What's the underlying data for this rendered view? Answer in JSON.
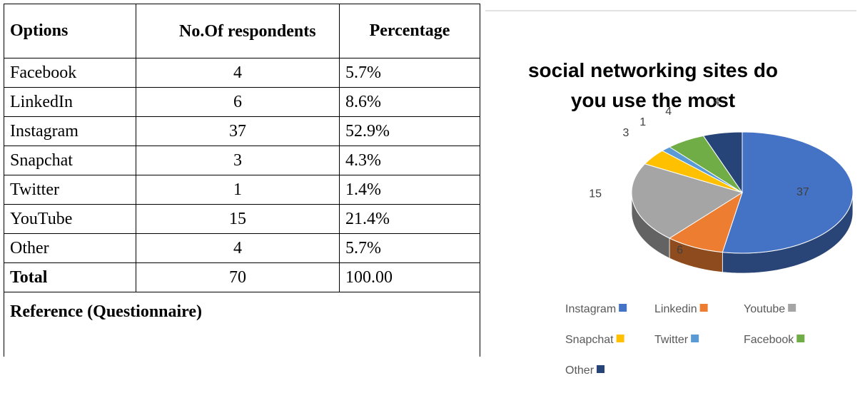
{
  "table": {
    "header": [
      "Options",
      "No.Of respondents",
      "Percentage"
    ],
    "rows": [
      [
        "Facebook",
        "4",
        "5.7%"
      ],
      [
        "LinkedIn",
        "6",
        "8.6%"
      ],
      [
        "Instagram",
        "37",
        "52.9%"
      ],
      [
        "Snapchat",
        "3",
        "4.3%"
      ],
      [
        "Twitter",
        "1",
        "1.4%"
      ],
      [
        "YouTube",
        "15",
        "21.4%"
      ],
      [
        "Other",
        "4",
        "5.7%"
      ]
    ],
    "total": [
      "Total",
      "70",
      "100.00"
    ],
    "reference": "Reference (Questionnaire)"
  },
  "chart_data": {
    "type": "pie",
    "title": "social networking sites do you use the most",
    "categories": [
      "Instagram",
      "Linkedin",
      "Youtube",
      "Snapchat",
      "Twitter",
      "Facebook",
      "Other"
    ],
    "values": [
      37,
      6,
      15,
      3,
      1,
      4,
      4
    ],
    "colors": [
      "#4472c4",
      "#ed7d31",
      "#a5a5a5",
      "#ffc000",
      "#5b9bd5",
      "#70ad47",
      "#264478"
    ]
  }
}
